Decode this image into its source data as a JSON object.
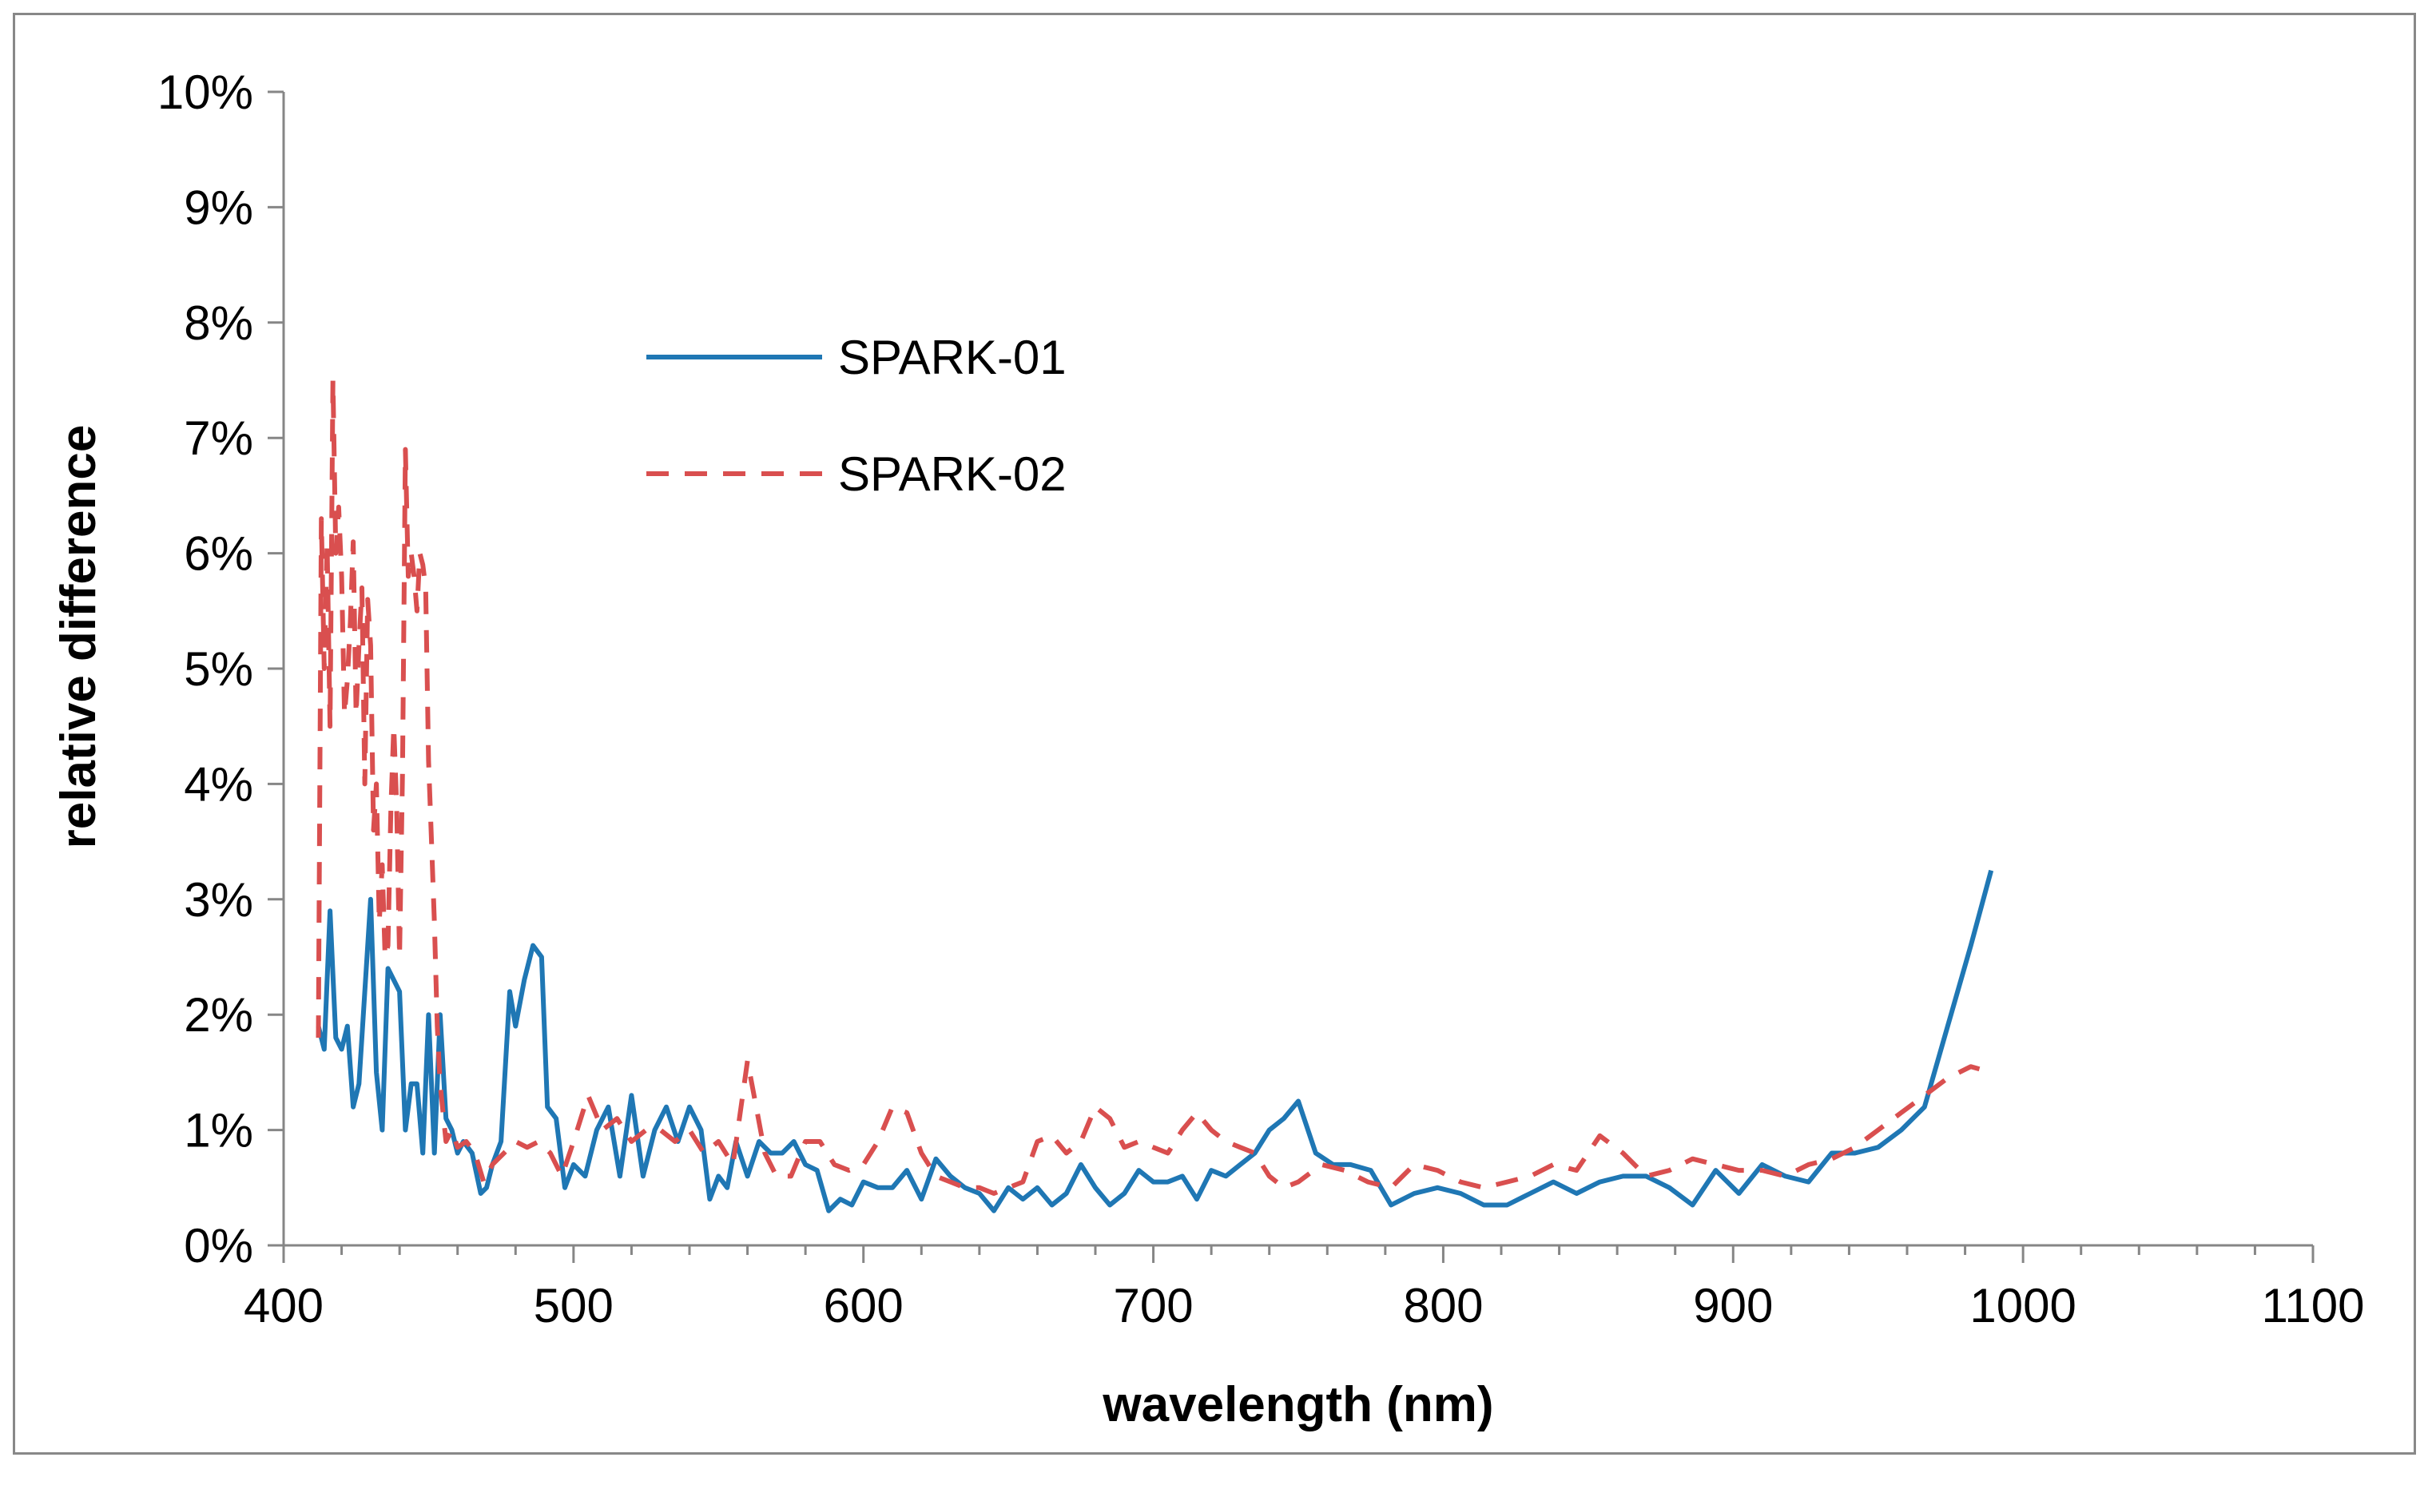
{
  "chart_data": {
    "type": "line",
    "title": "",
    "xlabel": "wavelength (nm)",
    "ylabel": "relative difference",
    "xlim": [
      400,
      1100
    ],
    "ylim": [
      0,
      10
    ],
    "x_ticks": [
      400,
      500,
      600,
      700,
      800,
      900,
      1000,
      1100
    ],
    "x_tick_labels": [
      "400",
      "500",
      "600",
      "700",
      "800",
      "900",
      "1000",
      "1100"
    ],
    "y_ticks": [
      0,
      1,
      2,
      3,
      4,
      5,
      6,
      7,
      8,
      9,
      10
    ],
    "y_tick_labels": [
      "0%",
      "1%",
      "2%",
      "3%",
      "4%",
      "5%",
      "6%",
      "7%",
      "8%",
      "9%",
      "10%"
    ],
    "legend_position": "upper-center-left",
    "grid": false,
    "series": [
      {
        "name": "SPARK-01",
        "color": "#1f77b4",
        "style": "solid",
        "x": [
          412,
          414,
          416,
          418,
          420,
          422,
          424,
          426,
          428,
          430,
          432,
          434,
          436,
          438,
          440,
          442,
          444,
          446,
          448,
          450,
          452,
          454,
          456,
          458,
          460,
          462,
          465,
          468,
          470,
          472,
          475,
          478,
          480,
          483,
          486,
          489,
          491,
          494,
          497,
          500,
          504,
          508,
          512,
          516,
          520,
          524,
          528,
          532,
          536,
          540,
          544,
          547,
          550,
          553,
          556,
          560,
          564,
          568,
          572,
          576,
          580,
          584,
          588,
          592,
          596,
          600,
          605,
          610,
          615,
          620,
          625,
          630,
          635,
          640,
          645,
          650,
          655,
          660,
          665,
          670,
          675,
          680,
          685,
          690,
          695,
          700,
          705,
          710,
          715,
          720,
          725,
          730,
          735,
          740,
          745,
          750,
          756,
          762,
          768,
          775,
          782,
          790,
          798,
          806,
          814,
          822,
          830,
          838,
          846,
          854,
          862,
          870,
          878,
          886,
          894,
          902,
          910,
          918,
          926,
          934,
          942,
          950,
          958,
          966,
          974,
          982,
          989
        ],
        "y": [
          1.9,
          1.7,
          2.9,
          1.8,
          1.7,
          1.9,
          1.2,
          1.4,
          2.2,
          3.0,
          1.5,
          1.0,
          2.4,
          2.3,
          2.2,
          1.0,
          1.4,
          1.4,
          0.8,
          2.0,
          0.8,
          2.0,
          1.1,
          1.0,
          0.8,
          0.9,
          0.8,
          0.45,
          0.5,
          0.7,
          0.9,
          2.2,
          1.9,
          2.3,
          2.6,
          2.5,
          1.2,
          1.1,
          0.5,
          0.7,
          0.6,
          1.0,
          1.2,
          0.6,
          1.3,
          0.6,
          1.0,
          1.2,
          0.9,
          1.2,
          1.0,
          0.4,
          0.6,
          0.5,
          0.9,
          0.6,
          0.9,
          0.8,
          0.8,
          0.9,
          0.7,
          0.65,
          0.3,
          0.4,
          0.35,
          0.55,
          0.5,
          0.5,
          0.65,
          0.4,
          0.75,
          0.6,
          0.5,
          0.45,
          0.3,
          0.5,
          0.4,
          0.5,
          0.35,
          0.45,
          0.7,
          0.5,
          0.35,
          0.45,
          0.65,
          0.55,
          0.55,
          0.6,
          0.4,
          0.65,
          0.6,
          0.7,
          0.8,
          1.0,
          1.1,
          1.25,
          0.8,
          0.7,
          0.7,
          0.65,
          0.35,
          0.45,
          0.5,
          0.45,
          0.35,
          0.35,
          0.45,
          0.55,
          0.45,
          0.55,
          0.6,
          0.6,
          0.5,
          0.35,
          0.65,
          0.45,
          0.7,
          0.6,
          0.55,
          0.8,
          0.8,
          0.85,
          1.0,
          1.2,
          1.9,
          2.6,
          3.25
        ]
      },
      {
        "name": "SPARK-02",
        "color": "#d94f4f",
        "style": "dashed",
        "x": [
          412,
          413,
          414,
          415,
          416,
          417,
          418,
          419,
          420,
          421,
          422,
          423,
          424,
          425,
          426,
          427,
          428,
          429,
          430,
          431,
          432,
          433,
          434,
          435,
          436,
          437,
          438,
          439,
          440,
          441,
          442,
          443,
          444,
          445,
          446,
          447,
          448,
          449,
          450,
          451,
          452,
          453,
          454,
          456,
          458,
          460,
          463,
          466,
          469,
          472,
          476,
          480,
          484,
          488,
          492,
          496,
          500,
          505,
          510,
          515,
          520,
          525,
          530,
          535,
          540,
          545,
          550,
          555,
          560,
          563,
          566,
          570,
          575,
          580,
          585,
          590,
          595,
          600,
          605,
          610,
          615,
          620,
          625,
          630,
          635,
          640,
          645,
          650,
          655,
          660,
          665,
          670,
          675,
          680,
          685,
          690,
          695,
          700,
          705,
          710,
          715,
          720,
          725,
          730,
          735,
          740,
          745,
          750,
          758,
          766,
          774,
          782,
          790,
          798,
          806,
          814,
          822,
          830,
          838,
          846,
          854,
          862,
          870,
          878,
          886,
          894,
          902,
          910,
          918,
          926,
          934,
          942,
          950,
          958,
          966,
          974,
          982,
          989
        ],
        "y": [
          1.8,
          6.3,
          5.0,
          6.1,
          4.5,
          7.5,
          6.0,
          6.4,
          5.8,
          4.6,
          4.9,
          5.4,
          6.1,
          4.6,
          5.2,
          5.7,
          4.0,
          5.6,
          5.2,
          3.6,
          4.0,
          2.8,
          3.3,
          2.5,
          2.6,
          3.8,
          4.5,
          3.8,
          2.5,
          4.1,
          6.9,
          5.8,
          6.0,
          5.8,
          5.5,
          6.0,
          5.9,
          5.7,
          4.2,
          3.5,
          2.8,
          1.9,
          1.4,
          0.9,
          1.0,
          0.85,
          0.9,
          0.8,
          0.55,
          0.7,
          0.8,
          0.9,
          0.85,
          0.9,
          0.8,
          0.6,
          0.9,
          1.3,
          1.0,
          1.1,
          0.9,
          1.0,
          1.0,
          0.9,
          1.0,
          0.8,
          0.9,
          0.7,
          1.6,
          1.2,
          0.8,
          0.6,
          0.6,
          0.9,
          0.9,
          0.7,
          0.65,
          0.7,
          0.9,
          1.2,
          1.15,
          0.8,
          0.6,
          0.55,
          0.5,
          0.5,
          0.45,
          0.5,
          0.55,
          0.9,
          0.95,
          0.8,
          0.9,
          1.2,
          1.1,
          0.85,
          0.9,
          0.85,
          0.8,
          1.0,
          1.15,
          1.0,
          0.9,
          0.85,
          0.8,
          0.6,
          0.5,
          0.55,
          0.7,
          0.65,
          0.55,
          0.5,
          0.7,
          0.65,
          0.55,
          0.5,
          0.55,
          0.6,
          0.7,
          0.65,
          0.95,
          0.8,
          0.6,
          0.65,
          0.75,
          0.7,
          0.65,
          0.65,
          0.6,
          0.7,
          0.75,
          0.85,
          1.0,
          1.15,
          1.3,
          1.45,
          1.55,
          1.5
        ]
      }
    ]
  }
}
